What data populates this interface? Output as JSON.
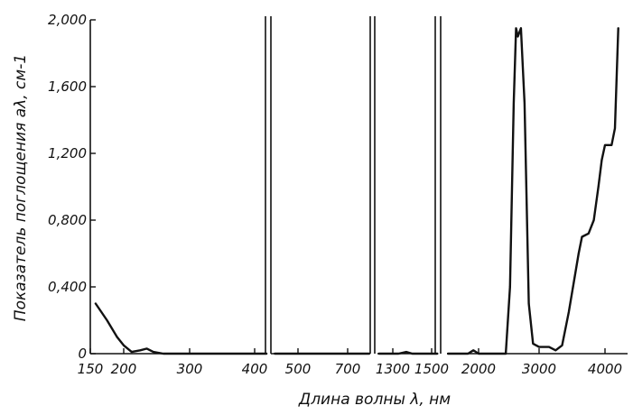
{
  "chart_data": {
    "type": "line",
    "title": "",
    "xlabel": "Длина волны λ, нм",
    "ylabel": "Показатель поглощения aλ, см-1",
    "y_ticks": [
      "0",
      "0,400",
      "0,800",
      "1,200",
      "1,600",
      "2,000"
    ],
    "y_values": [
      0,
      0.4,
      0.8,
      1.2,
      1.6,
      2.0
    ],
    "ylim": [
      0,
      2.0
    ],
    "x_axis": "broken, nonuniform scale",
    "grid": false,
    "segments": [
      {
        "range": [
          150,
          430
        ],
        "x_ticks": [
          150,
          200,
          300,
          400
        ],
        "points": [
          [
            158,
            0.3
          ],
          [
            175,
            0.2
          ],
          [
            190,
            0.1
          ],
          [
            200,
            0.05
          ],
          [
            212,
            0.01
          ],
          [
            225,
            0.02
          ],
          [
            235,
            0.03
          ],
          [
            245,
            0.01
          ],
          [
            260,
            0.0
          ],
          [
            300,
            0.0
          ],
          [
            350,
            0.0
          ],
          [
            400,
            0.0
          ],
          [
            428,
            0.0
          ]
        ]
      },
      {
        "range": [
          430,
          800
        ],
        "x_ticks": [
          500,
          700
        ],
        "points": [
          [
            440,
            0.0
          ],
          [
            550,
            0.0
          ],
          [
            650,
            0.0
          ],
          [
            795,
            0.0
          ]
        ]
      },
      {
        "range": [
          1200,
          1550
        ],
        "x_ticks": [
          1300,
          1500
        ],
        "points": [
          [
            1210,
            0.0
          ],
          [
            1330,
            0.0
          ],
          [
            1370,
            0.01
          ],
          [
            1400,
            0.0
          ],
          [
            1500,
            0.0
          ],
          [
            1545,
            0.0
          ]
        ]
      },
      {
        "range": [
          1700,
          4300
        ],
        "x_ticks": [
          2000,
          3000,
          4000
        ],
        "points": [
          [
            1710,
            0.0
          ],
          [
            1900,
            0.0
          ],
          [
            1950,
            0.02
          ],
          [
            2000,
            0.0
          ],
          [
            2300,
            0.0
          ],
          [
            2450,
            0.0
          ],
          [
            2520,
            0.4
          ],
          [
            2580,
            1.5
          ],
          [
            2620,
            1.95
          ],
          [
            2650,
            1.9
          ],
          [
            2700,
            1.95
          ],
          [
            2760,
            1.5
          ],
          [
            2830,
            0.3
          ],
          [
            2900,
            0.06
          ],
          [
            3000,
            0.04
          ],
          [
            3150,
            0.04
          ],
          [
            3250,
            0.02
          ],
          [
            3350,
            0.05
          ],
          [
            3450,
            0.25
          ],
          [
            3600,
            0.6
          ],
          [
            3650,
            0.7
          ],
          [
            3750,
            0.72
          ],
          [
            3830,
            0.8
          ],
          [
            3900,
            1.0
          ],
          [
            3950,
            1.16
          ],
          [
            4000,
            1.25
          ],
          [
            4100,
            1.25
          ],
          [
            4150,
            1.35
          ],
          [
            4200,
            1.95
          ]
        ]
      }
    ]
  }
}
